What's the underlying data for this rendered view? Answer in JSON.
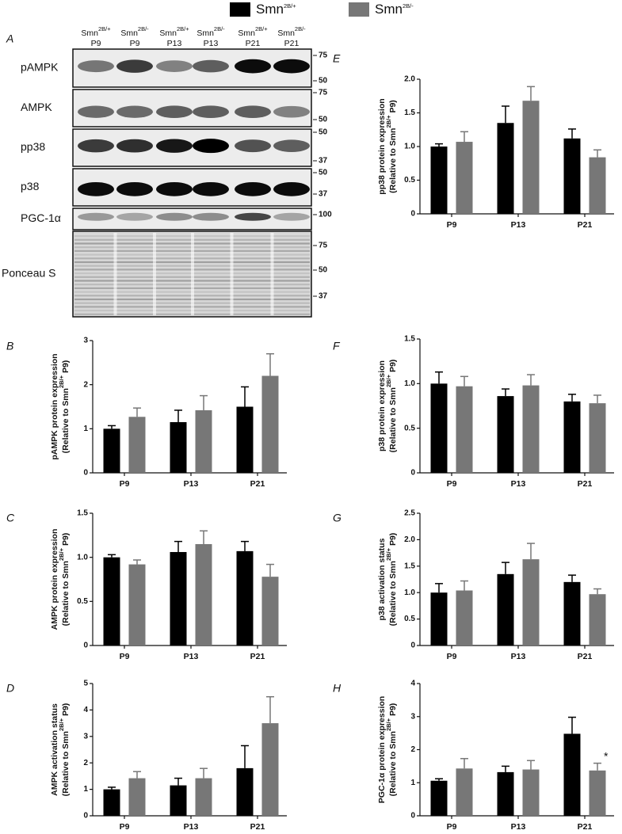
{
  "figure_panel": "A",
  "legend": [
    {
      "name": [
        "Smn",
        "2B/+"
      ],
      "color": "#000000"
    },
    {
      "name": [
        "Smn",
        "2B/-"
      ],
      "color": "#777777"
    }
  ],
  "blot": {
    "columns": [
      {
        "genotype": [
          "Smn",
          "2B/+"
        ],
        "age": "P9"
      },
      {
        "genotype": [
          "Smn",
          "2B/-"
        ],
        "age": "P9"
      },
      {
        "genotype": [
          "Smn",
          "2B/+"
        ],
        "age": "P13"
      },
      {
        "genotype": [
          "Smn",
          "2B/-"
        ],
        "age": "P13"
      },
      {
        "genotype": [
          "Smn",
          "2B/+"
        ],
        "age": "P21"
      },
      {
        "genotype": [
          "Smn",
          "2B/-"
        ],
        "age": "P21"
      }
    ],
    "rows": [
      {
        "label": "pAMPK",
        "markers": [
          "75",
          "50"
        ]
      },
      {
        "label": "AMPK",
        "markers": [
          "75",
          "50"
        ]
      },
      {
        "label": "pp38",
        "markers": [
          "50",
          "37"
        ]
      },
      {
        "label": "p38",
        "markers": [
          "50",
          "37"
        ]
      },
      {
        "label": "PGC-1α",
        "markers": [
          "100"
        ]
      },
      {
        "label": "Ponceau S",
        "markers": [
          "75",
          "50",
          "37"
        ]
      }
    ]
  },
  "chart_data": [
    {
      "type": "bar",
      "panel": "B",
      "ylabel": [
        "pAMPK protein expression",
        "(Relative to Smn",
        "2B/+",
        " P9)"
      ],
      "categories": [
        "P9",
        "P13",
        "P21"
      ],
      "series": [
        {
          "color": "#000000",
          "values": [
            1.0,
            1.15,
            1.5
          ],
          "errors": [
            0.07,
            0.27,
            0.45
          ]
        },
        {
          "color": "#777777",
          "values": [
            1.27,
            1.42,
            2.2
          ],
          "errors": [
            0.2,
            0.33,
            0.5
          ]
        }
      ],
      "ylim": [
        0,
        3
      ],
      "yticks": [
        0,
        1,
        2,
        3
      ]
    },
    {
      "type": "bar",
      "panel": "C",
      "ylabel": [
        "AMPK protein expression",
        "(Relative to Smn",
        "2B/+",
        " P9)"
      ],
      "categories": [
        "P9",
        "P13",
        "P21"
      ],
      "series": [
        {
          "color": "#000000",
          "values": [
            1.0,
            1.06,
            1.07
          ],
          "errors": [
            0.03,
            0.12,
            0.11
          ]
        },
        {
          "color": "#777777",
          "values": [
            0.92,
            1.15,
            0.78
          ],
          "errors": [
            0.05,
            0.15,
            0.14
          ]
        }
      ],
      "ylim": [
        0,
        1.5
      ],
      "yticks": [
        0,
        0.5,
        {
          "value": 1,
          "label": "1.0"
        },
        1.5
      ]
    },
    {
      "type": "bar",
      "panel": "D",
      "ylabel": [
        "AMPK activation status",
        "(Relative to Smn",
        "2B/+",
        " P9)"
      ],
      "categories": [
        "P9",
        "P13",
        "P21"
      ],
      "series": [
        {
          "color": "#000000",
          "values": [
            1.0,
            1.15,
            1.8
          ],
          "errors": [
            0.08,
            0.27,
            0.85
          ]
        },
        {
          "color": "#777777",
          "values": [
            1.42,
            1.42,
            3.5
          ],
          "errors": [
            0.25,
            0.37,
            1.0
          ]
        }
      ],
      "ylim": [
        0,
        5
      ],
      "yticks": [
        0,
        1,
        2,
        3,
        4,
        5
      ]
    },
    {
      "type": "bar",
      "panel": "E",
      "ylabel": [
        "pp38 protein expression",
        "(Relative to Smn",
        "2B/+",
        " P9)"
      ],
      "categories": [
        "P9",
        "P13",
        "P21"
      ],
      "series": [
        {
          "color": "#000000",
          "values": [
            1.0,
            1.35,
            1.12
          ],
          "errors": [
            0.04,
            0.25,
            0.14
          ]
        },
        {
          "color": "#777777",
          "values": [
            1.07,
            1.68,
            0.84
          ],
          "errors": [
            0.15,
            0.21,
            0.11
          ]
        }
      ],
      "ylim": [
        0,
        2
      ],
      "yticks": [
        0,
        0.5,
        {
          "value": 1,
          "label": "1.0"
        },
        1.5,
        {
          "value": 2,
          "label": "2.0"
        }
      ]
    },
    {
      "type": "bar",
      "panel": "F",
      "ylabel": [
        "p38 protein expression",
        "(Relative to Smn",
        "2B/+",
        " P9)"
      ],
      "categories": [
        "P9",
        "P13",
        "P21"
      ],
      "series": [
        {
          "color": "#000000",
          "values": [
            1.0,
            0.86,
            0.8
          ],
          "errors": [
            0.13,
            0.08,
            0.08
          ]
        },
        {
          "color": "#777777",
          "values": [
            0.97,
            0.98,
            0.78
          ],
          "errors": [
            0.11,
            0.12,
            0.09
          ]
        }
      ],
      "ylim": [
        0,
        1.5
      ],
      "yticks": [
        0,
        0.5,
        {
          "value": 1,
          "label": "1.0"
        },
        1.5
      ]
    },
    {
      "type": "bar",
      "panel": "G",
      "ylabel": [
        "p38 activation status",
        "(Relative to Smn",
        "2B/+",
        " P9)"
      ],
      "categories": [
        "P9",
        "P13",
        "P21"
      ],
      "series": [
        {
          "color": "#000000",
          "values": [
            1.0,
            1.35,
            1.2
          ],
          "errors": [
            0.17,
            0.22,
            0.13
          ]
        },
        {
          "color": "#777777",
          "values": [
            1.04,
            1.63,
            0.97
          ],
          "errors": [
            0.18,
            0.3,
            0.1
          ]
        }
      ],
      "ylim": [
        0,
        2.5
      ],
      "yticks": [
        0,
        0.5,
        {
          "value": 1,
          "label": "1.0"
        },
        1.5,
        {
          "value": 2,
          "label": "2.0"
        },
        2.5
      ]
    },
    {
      "type": "bar",
      "panel": "H",
      "ylabel": [
        "PGC-1α protein expression",
        "(Relative to Smn",
        "2B/+",
        " P9)"
      ],
      "categories": [
        "P9",
        "P13",
        "P21"
      ],
      "series": [
        {
          "color": "#000000",
          "values": [
            1.06,
            1.32,
            2.48
          ],
          "errors": [
            0.06,
            0.18,
            0.5
          ]
        },
        {
          "color": "#777777",
          "values": [
            1.43,
            1.4,
            1.37
          ],
          "errors": [
            0.3,
            0.27,
            0.22
          ]
        }
      ],
      "ylim": [
        0,
        4
      ],
      "yticks": [
        0,
        1,
        2,
        3,
        4
      ],
      "annotations": [
        {
          "text": "*",
          "x": "P21"
        }
      ]
    }
  ]
}
